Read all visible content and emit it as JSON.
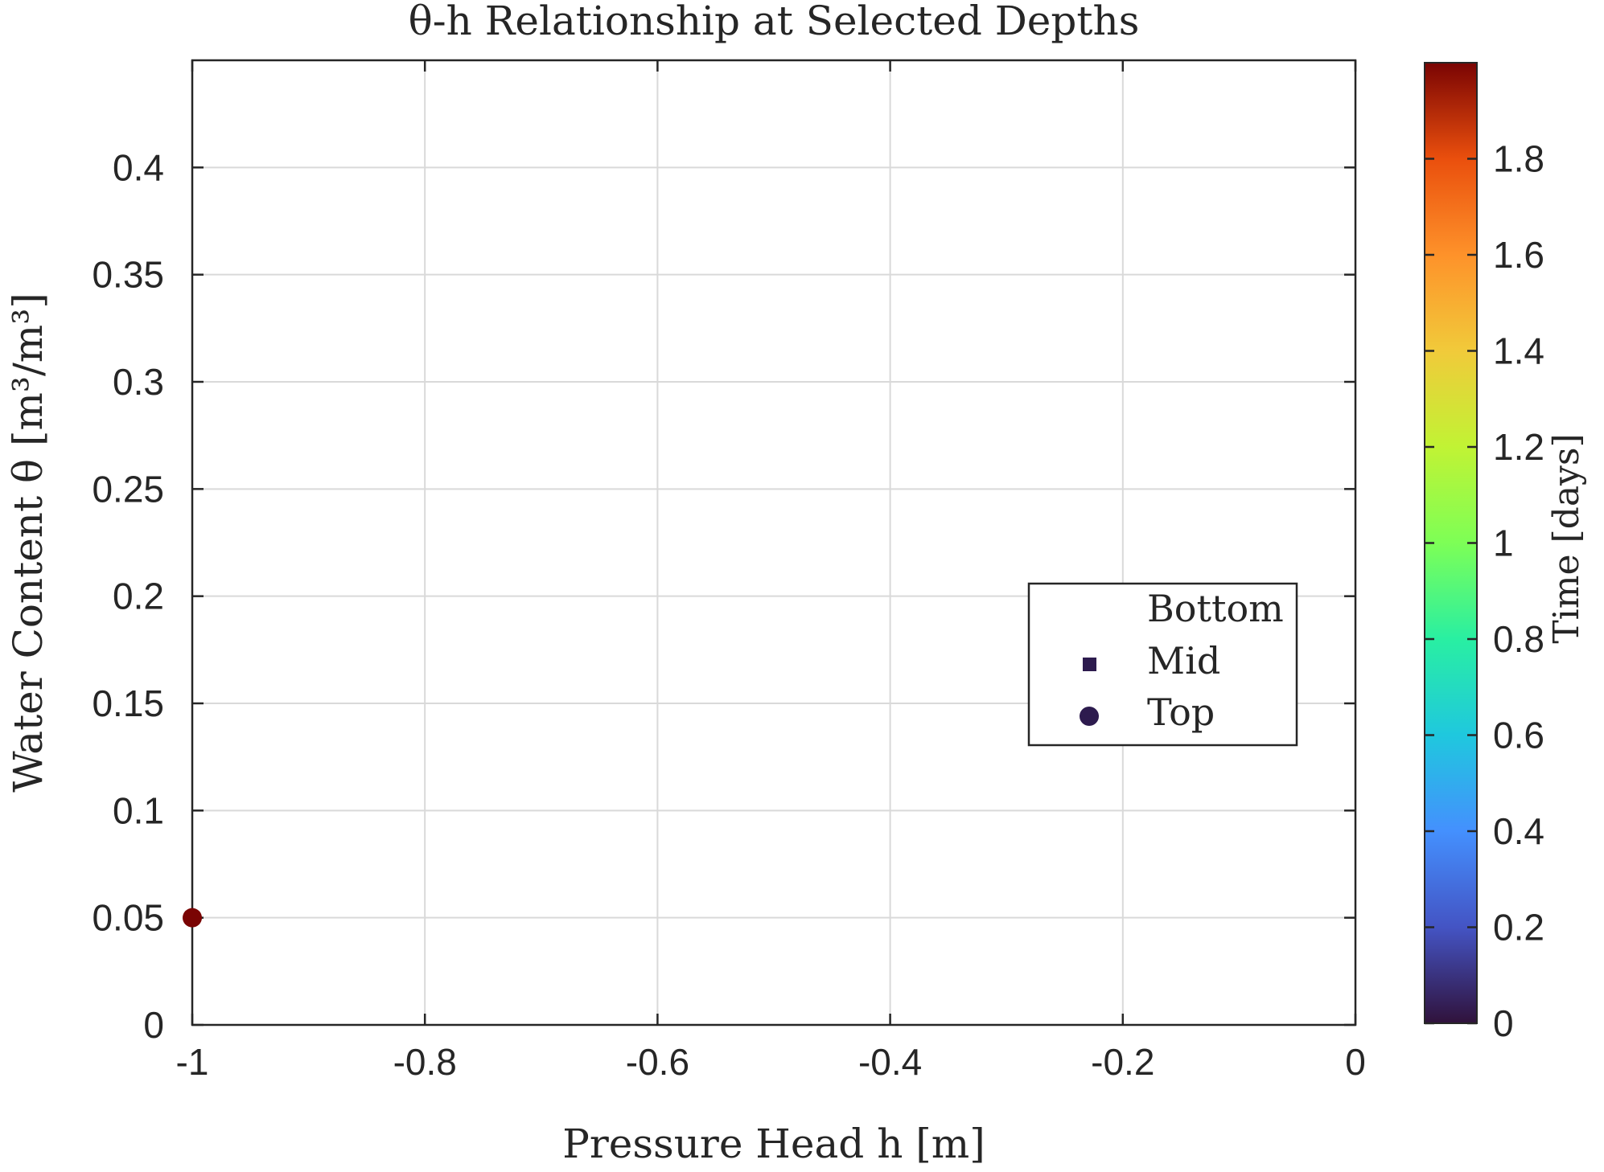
{
  "chart_data": {
    "type": "scatter",
    "title": "θ-h Relationship at Selected Depths",
    "xlabel": "Pressure Head h [m]",
    "ylabel": "Water Content θ [m³/m³]",
    "xlim": [
      -1,
      0
    ],
    "ylim": [
      0,
      0.45
    ],
    "xticks": [
      "-1",
      "-0.8",
      "-0.6",
      "-0.4",
      "-0.2",
      "0"
    ],
    "yticks": [
      "0",
      "0.05",
      "0.1",
      "0.15",
      "0.2",
      "0.25",
      "0.3",
      "0.35",
      "0.4"
    ],
    "grid": true,
    "legend_position": "right",
    "series": [
      {
        "name": "Bottom",
        "marker": "none",
        "points": []
      },
      {
        "name": "Mid",
        "marker": "square",
        "color": "#2d1b4e",
        "points": []
      },
      {
        "name": "Top",
        "marker": "circle",
        "color": "#2d1b4e",
        "points": [
          {
            "x": -1,
            "y": 0.05,
            "t": 2.0
          }
        ]
      }
    ],
    "colorbar": {
      "label": "Time [days]",
      "range": [
        0,
        2
      ],
      "ticks": [
        "0",
        "0.2",
        "0.4",
        "0.6",
        "0.8",
        "1",
        "1.2",
        "1.4",
        "1.6",
        "1.8"
      ],
      "colormap": "turbo"
    }
  },
  "colors": {
    "marker_value_color": "#7a0403",
    "legend_marker": "#2d1b4e",
    "axis": "#262626",
    "grid": "#d9d9d9"
  }
}
